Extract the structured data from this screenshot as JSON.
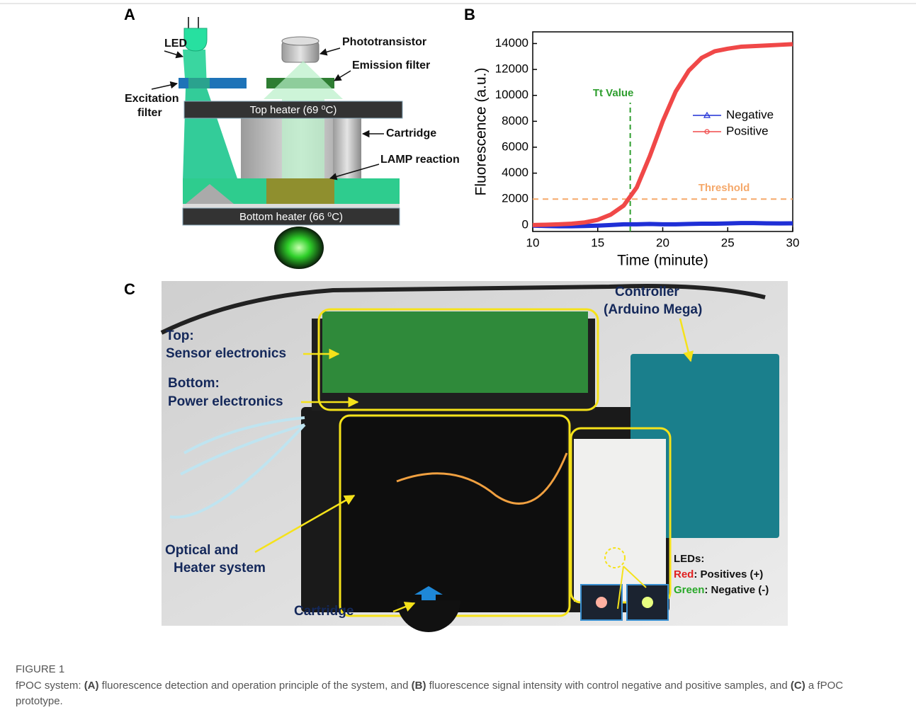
{
  "panels": {
    "a": {
      "label": "A",
      "led": "LED",
      "phototransistor": "Phototransistor",
      "emission_filter": "Emission filter",
      "excitation_filter": [
        "Excitation",
        "filter"
      ],
      "top_heater": "Top heater (69 ⁰C)",
      "cartridge": "Cartridge",
      "lamp_reaction": "LAMP reaction",
      "bottom_heater": "Bottom heater (66 ⁰C)"
    },
    "b": {
      "label": "B"
    },
    "c": {
      "label": "C",
      "controller": [
        "Controller",
        "(Arduino Mega)"
      ],
      "top": [
        "Top:",
        "Sensor electronics"
      ],
      "bottom": [
        "Bottom:",
        "Power electronics"
      ],
      "optical": [
        "Optical and",
        "Heater system"
      ],
      "cartridge": "Cartridge",
      "leds": {
        "title": "LEDs:",
        "red": {
          "word": "Red",
          "text": ": Positives (+)"
        },
        "green": {
          "word": "Green",
          "text": ": Negative (-)"
        }
      }
    }
  },
  "chart_data": {
    "type": "line",
    "x_label": "Time (minute)",
    "y_label": "Fluorescence (a.u.)",
    "x": [
      10,
      11,
      12,
      13,
      14,
      15,
      16,
      17,
      18,
      19,
      20,
      21,
      22,
      23,
      24,
      25,
      26,
      27,
      28,
      29,
      30
    ],
    "series": [
      {
        "name": "Negative",
        "color": "#1f2fd6",
        "marker": "triangle",
        "values": [
          -50,
          -80,
          -100,
          -100,
          -80,
          -50,
          0,
          50,
          50,
          80,
          50,
          50,
          80,
          100,
          100,
          120,
          150,
          150,
          130,
          120,
          130
        ]
      },
      {
        "name": "Positive",
        "color": "#f04848",
        "marker": "circle",
        "values": [
          0,
          20,
          50,
          100,
          200,
          400,
          800,
          1500,
          2900,
          5300,
          8000,
          10300,
          11900,
          12900,
          13400,
          13600,
          13750,
          13800,
          13850,
          13900,
          13950
        ]
      }
    ],
    "xlim": [
      10,
      30
    ],
    "xticks": [
      10,
      15,
      20,
      25,
      30
    ],
    "ylim": [
      -500,
      14900
    ],
    "yticks": [
      0,
      2000,
      4000,
      6000,
      8000,
      10000,
      12000,
      14000
    ],
    "threshold": {
      "value": 2000,
      "label": "Threshold",
      "color": "#f5a86a"
    },
    "tt": {
      "value": 17.5,
      "label": "Tt Value",
      "color": "#2e9e2e"
    },
    "legend": "center-right"
  },
  "caption": {
    "figure_label": "FIGURE 1",
    "parts": [
      "fPOC system: ",
      "(A)",
      " fluorescence detection and operation principle of the system, and ",
      "(B)",
      " fluorescence signal intensity with control negative and positive samples, and ",
      "(C)",
      " a fPOC prototype."
    ]
  }
}
